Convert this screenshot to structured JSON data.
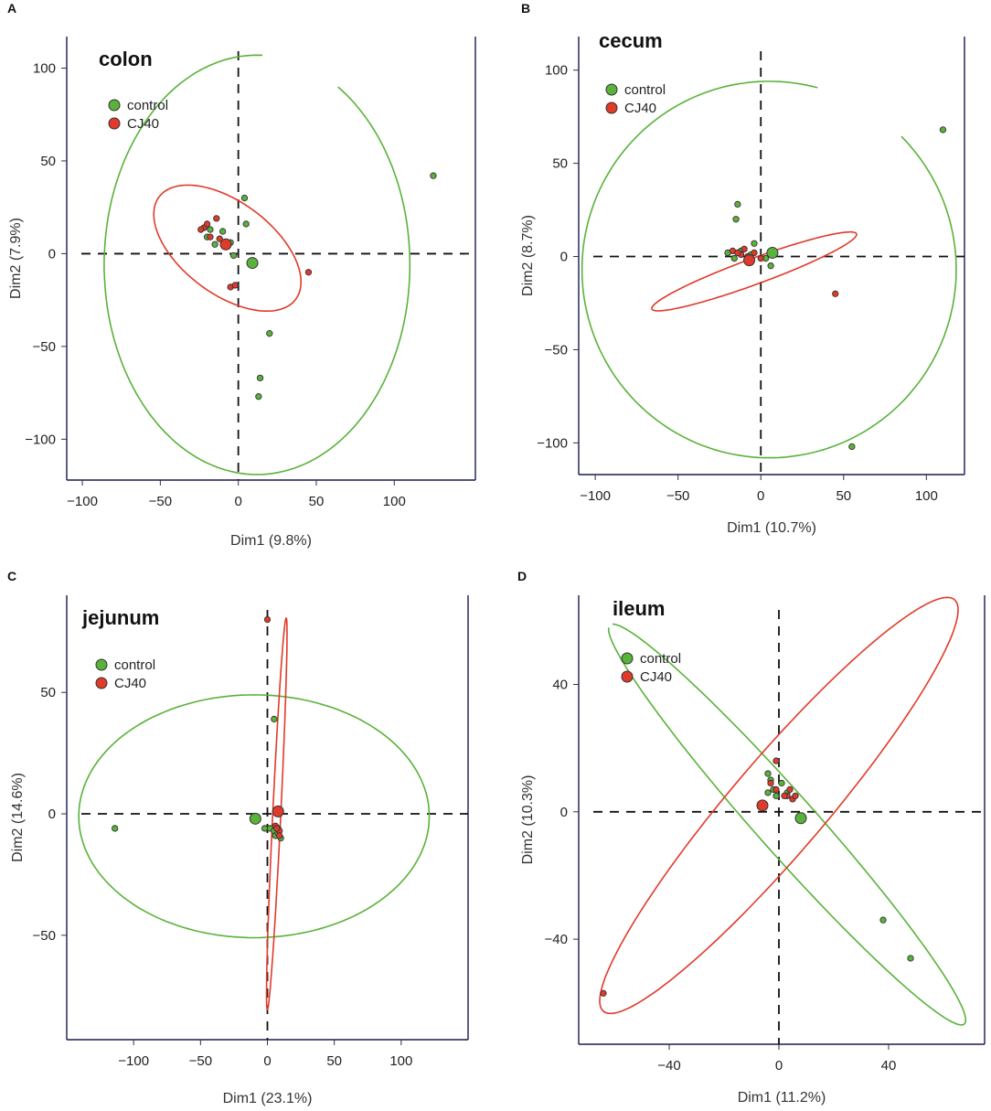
{
  "figure": {
    "colors": {
      "control": "#59b23a",
      "cj40": "#e03a2a",
      "axis": "#1a1a50",
      "ref": "#111111"
    },
    "legend": [
      "control",
      "CJ40"
    ]
  },
  "chart_data": [
    {
      "type": "scatter",
      "letter": "A",
      "title": "colon",
      "xlabel": "Dim1 (9.8%)",
      "ylabel": "Dim2 (7.9%)",
      "xlim": [
        -110,
        152
      ],
      "ylim": [
        -122,
        117
      ],
      "xticks": [
        -100,
        -50,
        0,
        50,
        100
      ],
      "yticks": [
        -100,
        -50,
        0,
        50,
        100
      ],
      "series": [
        {
          "name": "control",
          "points": [
            [
              125,
              42
            ],
            [
              4,
              30
            ],
            [
              5,
              16
            ],
            [
              -10,
              12
            ],
            [
              -5,
              6
            ],
            [
              -15,
              5
            ],
            [
              -3,
              -1
            ],
            [
              10,
              -5
            ],
            [
              -20,
              9
            ],
            [
              20,
              -43
            ],
            [
              14,
              -67
            ],
            [
              13,
              -77
            ],
            [
              -18,
              13
            ]
          ],
          "centroid": [
            9,
            -5
          ],
          "ellipse": {
            "cx": 12,
            "cy": -6,
            "rx": 98,
            "ry": 113,
            "angle": 0,
            "arc": [
              88,
              418
            ]
          }
        },
        {
          "name": "CJ40",
          "points": [
            [
              -22,
              14
            ],
            [
              -18,
              9
            ],
            [
              -14,
              19
            ],
            [
              -12,
              8
            ],
            [
              -8,
              6
            ],
            [
              -24,
              13
            ],
            [
              -20,
              16
            ],
            [
              45,
              -10
            ],
            [
              -5,
              -18
            ],
            [
              -2,
              -17
            ]
          ],
          "centroid": [
            -8,
            5
          ],
          "ellipse": {
            "cx": -7,
            "cy": 3,
            "rx": 52,
            "ry": 26,
            "angle": -29
          }
        }
      ]
    },
    {
      "type": "scatter",
      "letter": "B",
      "title": "cecum",
      "xlabel": "Dim1 (10.7%)",
      "ylabel": "Dim2 (8.7%)",
      "xlim": [
        -110,
        123
      ],
      "ylim": [
        -117,
        118
      ],
      "xticks": [
        -100,
        -50,
        0,
        50,
        100
      ],
      "yticks": [
        -100,
        -50,
        0,
        50,
        100
      ],
      "series": [
        {
          "name": "control",
          "points": [
            [
              110,
              68
            ],
            [
              -14,
              28
            ],
            [
              -15,
              20
            ],
            [
              -4,
              7
            ],
            [
              -20,
              2
            ],
            [
              -16,
              -1
            ],
            [
              -12,
              3
            ],
            [
              -6,
              1
            ],
            [
              3,
              -1
            ],
            [
              6,
              -5
            ],
            [
              -8,
              -2
            ],
            [
              55,
              -102
            ]
          ],
          "centroid": [
            7,
            2
          ],
          "ellipse": {
            "cx": 5,
            "cy": -7,
            "rx": 113,
            "ry": 101,
            "angle": 0,
            "arc": [
              75,
              405
            ]
          }
        },
        {
          "name": "CJ40",
          "points": [
            [
              -17,
              3
            ],
            [
              -12,
              1
            ],
            [
              -10,
              4
            ],
            [
              -8,
              0
            ],
            [
              -4,
              2
            ],
            [
              0,
              -1
            ],
            [
              -14,
              2
            ],
            [
              45,
              -20
            ]
          ],
          "centroid": [
            -7,
            -2
          ],
          "ellipse": {
            "cx": -4,
            "cy": -8,
            "rx": 65,
            "ry": 7,
            "angle": 18
          }
        }
      ]
    },
    {
      "type": "scatter",
      "letter": "C",
      "title": "jejunum",
      "xlabel": "Dim1 (23.1%)",
      "ylabel": "Dim2 (14.6%)",
      "xlim": [
        -150,
        150
      ],
      "ylim": [
        -93,
        90
      ],
      "xticks": [
        -100,
        -50,
        0,
        50,
        100
      ],
      "yticks": [
        -50,
        0,
        50
      ],
      "series": [
        {
          "name": "control",
          "points": [
            [
              -114,
              -6
            ],
            [
              5,
              39
            ],
            [
              -2,
              -6
            ],
            [
              2,
              -6
            ],
            [
              5,
              -7
            ],
            [
              8,
              -6
            ],
            [
              6,
              -9
            ],
            [
              10,
              -10
            ],
            [
              8,
              -8
            ]
          ],
          "centroid": [
            -9,
            -2
          ],
          "ellipse": {
            "cx": -10,
            "cy": -1,
            "rx": 131,
            "ry": 50,
            "angle": 0
          }
        },
        {
          "name": "CJ40",
          "points": [
            [
              0,
              80
            ],
            [
              6,
              -5
            ],
            [
              9,
              -7
            ],
            [
              9,
              -9
            ],
            [
              7,
              -6
            ]
          ],
          "centroid": [
            8,
            1
          ],
          "ellipse": {
            "cx": 7,
            "cy": 0,
            "rx": 81,
            "ry": 3,
            "angle": 85
          }
        }
      ]
    },
    {
      "type": "scatter",
      "letter": "D",
      "title": "ileum",
      "xlabel": "Dim1 (11.2%)",
      "ylabel": "Dim2 (10.3%)",
      "xlim": [
        -73,
        75
      ],
      "ylim": [
        -73,
        68
      ],
      "xticks": [
        -40,
        0,
        40
      ],
      "yticks": [
        -40,
        0,
        40
      ],
      "series": [
        {
          "name": "control",
          "points": [
            [
              -4,
              12
            ],
            [
              -3,
              10
            ],
            [
              -2,
              7
            ],
            [
              -4,
              6
            ],
            [
              -1,
              5
            ],
            [
              1,
              9
            ],
            [
              3,
              6
            ],
            [
              38,
              -34
            ],
            [
              48,
              -46
            ]
          ],
          "centroid": [
            8,
            -2
          ],
          "ellipse": {
            "cx": 3,
            "cy": -4,
            "rx": 90,
            "ry": 10,
            "angle": -44,
            "arc": [
              -176,
              174
            ]
          }
        },
        {
          "name": "CJ40",
          "points": [
            [
              -1,
              16
            ],
            [
              -3,
              9
            ],
            [
              -1,
              7
            ],
            [
              3,
              5
            ],
            [
              4,
              7
            ],
            [
              5,
              4
            ],
            [
              6,
              5
            ],
            [
              2,
              5
            ],
            [
              -64,
              -57
            ]
          ],
          "centroid": [
            -6,
            2
          ],
          "ellipse": {
            "cx": 0,
            "cy": 2,
            "rx": 91,
            "ry": 16,
            "angle": 45
          }
        }
      ]
    }
  ]
}
